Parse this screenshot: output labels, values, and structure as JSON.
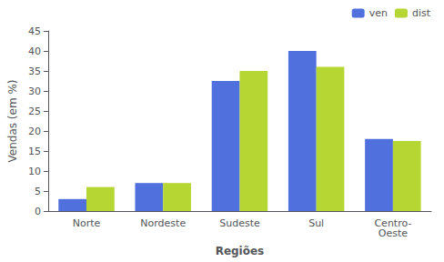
{
  "chart_data": {
    "type": "bar",
    "xlabel": "Regiões",
    "ylabel": "Vendas (em %)",
    "categories": [
      "Norte",
      "Nordeste",
      "Sudeste",
      "Sul",
      "Centro-\nOeste"
    ],
    "series": [
      {
        "name": "ven",
        "values": [
          3,
          7,
          32.5,
          40,
          18
        ]
      },
      {
        "name": "dist",
        "values": [
          6,
          7,
          35,
          36,
          17.5
        ]
      }
    ],
    "ylim": [
      0,
      45
    ],
    "yticks": [
      0,
      5,
      10,
      15,
      20,
      25,
      30,
      35,
      40,
      45
    ],
    "legend": "upper right",
    "grid": false
  }
}
